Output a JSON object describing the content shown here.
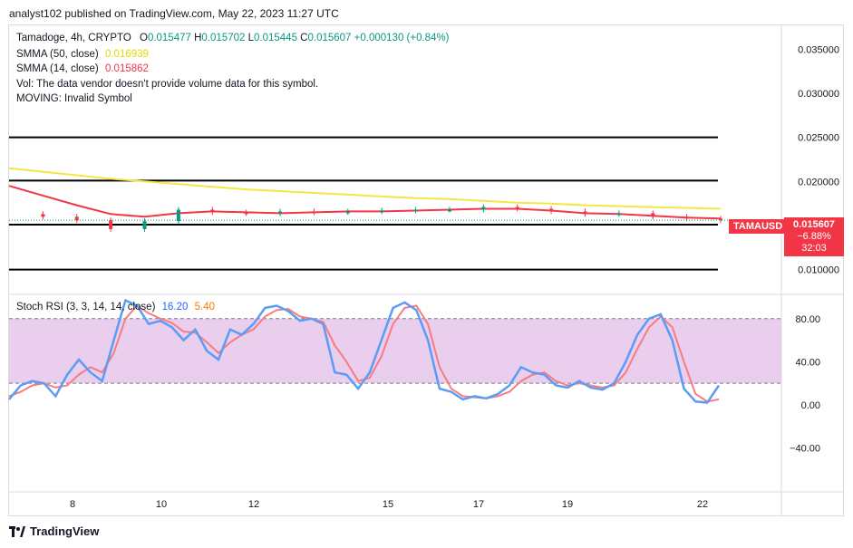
{
  "header": {
    "published": "analyst102 published on TradingView.com, May 22, 2023 11:27 UTC"
  },
  "legend": {
    "symbol": "Tamadoge, 4h, CRYPTO",
    "ohlc": {
      "o_label": "O",
      "o": "0.015477",
      "h_label": "H",
      "h": "0.015702",
      "l_label": "L",
      "l": "0.015445",
      "c_label": "C",
      "c": "0.015607",
      "change": "+0.000130 (+0.84%)"
    },
    "smma50_label": "SMMA (50, close)",
    "smma50_value": "0.016939",
    "smma14_label": "SMMA (14, close)",
    "smma14_value": "0.015862",
    "vol_note": "Vol: The data vendor doesn't provide volume data for this symbol.",
    "moving_note": "MOVING: Invalid Symbol",
    "stoch_label": "Stoch RSI (3, 3, 14, 14, close)",
    "stoch_k": "16.20",
    "stoch_d": "5.40"
  },
  "price_tag": {
    "symbol": "TAMAUSD",
    "price": "0.015607",
    "change": "−6.88%",
    "countdown": "32:03"
  },
  "footer": {
    "brand": "TradingView"
  },
  "colors": {
    "up": "#089981",
    "down": "#f23645",
    "smma50": "#f5e642",
    "smma14": "#f23645",
    "stochK": "#5b9cf6",
    "stochD": "#f77c80",
    "band": "#e1bee7"
  },
  "chart_data": [
    {
      "type": "line",
      "title": "Tamadoge, 4h, CRYPTO",
      "x_ticks": [
        "8",
        "10",
        "12",
        "15",
        "17",
        "19",
        "22"
      ],
      "y_ticks": [
        "0.035000",
        "0.030000",
        "0.025000",
        "0.020000",
        "0.010000"
      ],
      "ylim": [
        0.0075,
        0.0375
      ],
      "horizontal_levels": [
        0.025,
        0.0201,
        0.0151,
        0.01
      ],
      "series": [
        {
          "name": "SMMA (50, close)",
          "values": [
            0.0215,
            0.0211,
            0.0207,
            0.0203,
            0.02,
            0.0197,
            0.0194,
            0.0191,
            0.0189,
            0.0187,
            0.0185,
            0.0183,
            0.0181,
            0.018,
            0.0178,
            0.0176,
            0.0175,
            0.0173,
            0.0172,
            0.0171,
            0.017,
            0.0169
          ]
        },
        {
          "name": "SMMA (14, close)",
          "values": [
            0.0195,
            0.0184,
            0.0173,
            0.0163,
            0.016,
            0.0164,
            0.0166,
            0.0165,
            0.0164,
            0.0165,
            0.0166,
            0.0166,
            0.0167,
            0.0168,
            0.0169,
            0.0169,
            0.0167,
            0.0164,
            0.0163,
            0.0161,
            0.0159,
            0.0158
          ]
        },
        {
          "name": "Price",
          "values": [
            0.0163,
            0.016,
            0.0156,
            0.0146,
            0.0155,
            0.0168,
            0.0165,
            0.0164,
            0.0166,
            0.0165,
            0.0166,
            0.0167,
            0.0168,
            0.0168,
            0.0171,
            0.0169,
            0.0166,
            0.0163,
            0.0164,
            0.016,
            0.0158,
            0.0156
          ]
        }
      ]
    },
    {
      "type": "line",
      "title": "Stoch RSI (3, 3, 14, 14, close)",
      "y_ticks": [
        "80.00",
        "40.00",
        "0.00",
        "−40.00"
      ],
      "ylim": [
        -80,
        100
      ],
      "band": [
        20,
        80
      ],
      "series": [
        {
          "name": "K",
          "values": [
            5,
            18,
            22,
            20,
            8,
            28,
            42,
            30,
            22,
            60,
            97,
            92,
            75,
            78,
            72,
            60,
            70,
            50,
            42,
            70,
            65,
            75,
            90,
            92,
            87,
            78,
            80,
            75,
            30,
            28,
            15,
            30,
            60,
            90,
            95,
            88,
            60,
            15,
            12,
            5,
            8,
            6,
            10,
            18,
            35,
            30,
            28,
            18,
            16,
            22,
            16,
            14,
            20,
            40,
            65,
            80,
            84,
            60,
            15,
            3,
            2,
            18
          ]
        },
        {
          "name": "D",
          "values": [
            8,
            12,
            18,
            20,
            16,
            18,
            28,
            35,
            30,
            48,
            80,
            92,
            85,
            80,
            76,
            68,
            67,
            58,
            48,
            58,
            65,
            70,
            82,
            88,
            89,
            82,
            80,
            77,
            55,
            40,
            22,
            25,
            45,
            75,
            90,
            92,
            75,
            35,
            15,
            8,
            7,
            6,
            8,
            12,
            22,
            28,
            30,
            22,
            18,
            20,
            18,
            16,
            18,
            30,
            52,
            72,
            82,
            72,
            40,
            10,
            3,
            5
          ]
        }
      ]
    }
  ]
}
